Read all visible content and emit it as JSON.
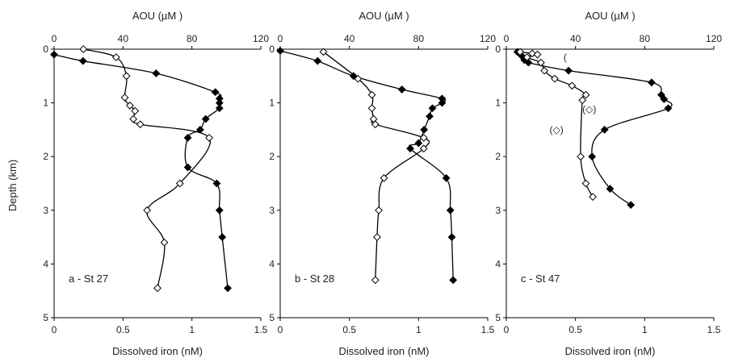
{
  "shared": {
    "ylabel": "Depth (km)",
    "top_xlabel": "AOU (µM )",
    "bottom_xlabel": "Dissolved iron (nM)"
  },
  "chart_data": [
    {
      "type": "line",
      "panel_label": "a - St 27",
      "ylim": [
        0,
        5
      ],
      "y_reversed": true,
      "yticks": [
        "0",
        "1",
        "2",
        "3",
        "4",
        "5"
      ],
      "iron_xlim": [
        0,
        1.5
      ],
      "iron_xticks": [
        "0",
        "0.5",
        "1",
        "1.5"
      ],
      "aou_xlim": [
        0,
        120
      ],
      "aou_xticks": [
        "0",
        "40",
        "80",
        "120"
      ],
      "series": [
        {
          "axis": "iron",
          "marker": "filled-diamond",
          "points": [
            [
              0.0,
              0.1
            ],
            [
              0.21,
              0.22
            ],
            [
              0.74,
              0.45
            ],
            [
              1.17,
              0.8
            ],
            [
              1.2,
              0.92
            ],
            [
              1.2,
              1.0
            ],
            [
              1.2,
              1.1
            ],
            [
              1.1,
              1.3
            ],
            [
              1.06,
              1.5
            ],
            [
              0.97,
              1.65
            ],
            [
              0.97,
              2.2
            ],
            [
              1.18,
              2.5
            ],
            [
              1.2,
              3.0
            ],
            [
              1.22,
              3.5
            ],
            [
              1.26,
              4.45
            ]
          ]
        },
        {
          "axis": "aou",
          "marker": "open-diamond",
          "points": [
            [
              17,
              0.0
            ],
            [
              36,
              0.15
            ],
            [
              42,
              0.5
            ],
            [
              41,
              0.9
            ],
            [
              44,
              1.05
            ],
            [
              47,
              1.15
            ],
            [
              46,
              1.3
            ],
            [
              50,
              1.4
            ],
            [
              90,
              1.65
            ],
            [
              73,
              2.5
            ],
            [
              54,
              3.0
            ],
            [
              64,
              3.6
            ],
            [
              60,
              4.45
            ]
          ]
        }
      ]
    },
    {
      "type": "line",
      "panel_label": "b - St 28",
      "ylim": [
        0,
        5
      ],
      "y_reversed": true,
      "yticks": [
        "0",
        "1",
        "2",
        "3",
        "4",
        "5"
      ],
      "iron_xlim": [
        0,
        1.5
      ],
      "iron_xticks": [
        "0",
        "0.5",
        "1",
        "1.5"
      ],
      "aou_xlim": [
        0,
        120
      ],
      "aou_xticks": [
        "0",
        "40",
        "80",
        "120"
      ],
      "series": [
        {
          "axis": "iron",
          "marker": "filled-diamond",
          "points": [
            [
              0.0,
              0.03
            ],
            [
              0.27,
              0.22
            ],
            [
              0.53,
              0.5
            ],
            [
              0.88,
              0.75
            ],
            [
              1.17,
              0.92
            ],
            [
              1.17,
              1.0
            ],
            [
              1.1,
              1.1
            ],
            [
              1.08,
              1.25
            ],
            [
              1.04,
              1.5
            ],
            [
              1.0,
              1.75
            ],
            [
              0.94,
              1.85
            ],
            [
              1.2,
              2.4
            ],
            [
              1.23,
              3.0
            ],
            [
              1.24,
              3.5
            ],
            [
              1.25,
              4.3
            ]
          ]
        },
        {
          "axis": "aou",
          "marker": "open-diamond",
          "points": [
            [
              25,
              0.05
            ],
            [
              45,
              0.55
            ],
            [
              53,
              0.85
            ],
            [
              53,
              1.1
            ],
            [
              54,
              1.3
            ],
            [
              55,
              1.4
            ],
            [
              83,
              1.65
            ],
            [
              83,
              1.85
            ],
            [
              60,
              2.4
            ],
            [
              57,
              3.0
            ],
            [
              56,
              3.5
            ],
            [
              55,
              4.3
            ]
          ]
        }
      ]
    },
    {
      "type": "line",
      "panel_label": "c - St 47",
      "ylim": [
        0,
        5
      ],
      "y_reversed": true,
      "yticks": [
        "0",
        "1",
        "2",
        "3",
        "4",
        "5"
      ],
      "iron_xlim": [
        0,
        1.5
      ],
      "iron_xticks": [
        "0",
        "0.5",
        "1",
        "1.5"
      ],
      "aou_xlim": [
        0,
        120
      ],
      "aou_xticks": [
        "0",
        "40",
        "80",
        "120"
      ],
      "annotations": [
        {
          "axis": "aou",
          "x": 34,
          "y": 0.15,
          "text": "("
        },
        {
          "axis": "aou",
          "x": 48,
          "y": 1.12,
          "text": "(◇)"
        },
        {
          "axis": "aou",
          "x": 29,
          "y": 1.5,
          "text": "(◇)"
        }
      ],
      "series": [
        {
          "axis": "iron",
          "marker": "filled-diamond",
          "points": [
            [
              0.08,
              0.05
            ],
            [
              0.11,
              0.12
            ],
            [
              0.13,
              0.2
            ],
            [
              0.16,
              0.25
            ],
            [
              0.45,
              0.4
            ],
            [
              1.05,
              0.62
            ],
            [
              1.12,
              0.85
            ],
            [
              1.14,
              0.93
            ],
            [
              1.17,
              1.1
            ],
            [
              0.71,
              1.5
            ],
            [
              0.62,
              2.0
            ],
            [
              0.75,
              2.6
            ],
            [
              0.9,
              2.9
            ]
          ]
        },
        {
          "axis": "aou",
          "marker": "open-diamond",
          "points": [
            [
              8,
              0.05
            ],
            [
              15,
              0.08
            ],
            [
              18,
              0.1
            ],
            [
              12,
              0.15
            ],
            [
              20,
              0.25
            ],
            [
              22,
              0.4
            ],
            [
              28,
              0.55
            ],
            [
              38,
              0.68
            ],
            [
              46,
              0.85
            ],
            [
              44,
              0.95
            ],
            [
              43,
              2.0
            ],
            [
              46,
              2.5
            ],
            [
              50,
              2.75
            ]
          ]
        }
      ]
    }
  ]
}
